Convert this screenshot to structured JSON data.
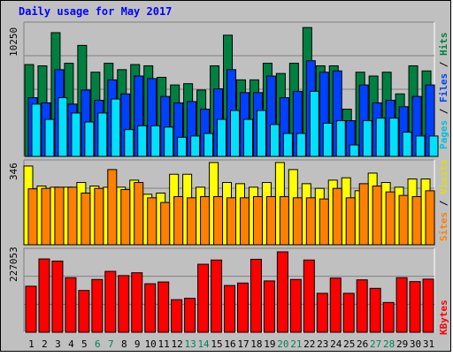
{
  "chart_data": [
    {
      "type": "bar",
      "title": "Daily usage for May 2017",
      "max_label": "10250",
      "categories": [
        "1",
        "2",
        "3",
        "4",
        "5",
        "6",
        "7",
        "8",
        "9",
        "10",
        "11",
        "12",
        "13",
        "14",
        "15",
        "16",
        "17",
        "18",
        "19",
        "20",
        "21",
        "22",
        "23",
        "24",
        "25",
        "26",
        "27",
        "28",
        "29",
        "30",
        "31"
      ],
      "weekend_days": [
        "6",
        "7",
        "13",
        "14",
        "20",
        "21",
        "27",
        "28"
      ],
      "legend": [
        "Pages",
        "/",
        "Files",
        "/",
        "Hits"
      ],
      "ylim": [
        0,
        10250
      ],
      "series": [
        {
          "name": "Hits",
          "color": "#008040",
          "values": [
            7200,
            7100,
            9700,
            7300,
            8700,
            6600,
            7300,
            6800,
            7200,
            7100,
            6200,
            5600,
            5700,
            5200,
            7100,
            9500,
            6000,
            6000,
            7300,
            6500,
            7300,
            10100,
            7100,
            7100,
            3700,
            6600,
            6300,
            6600,
            4900,
            7100,
            6700
          ]
        },
        {
          "name": "Files",
          "color": "#0040ff",
          "values": [
            4600,
            4200,
            6800,
            4100,
            5200,
            4400,
            6000,
            4900,
            6300,
            6100,
            4700,
            4200,
            4300,
            3700,
            5300,
            6800,
            5000,
            5000,
            6300,
            4600,
            5100,
            7500,
            6600,
            6700,
            2800,
            5600,
            4200,
            4400,
            3900,
            4700,
            5600
          ]
        },
        {
          "name": "Pages",
          "color": "#00e0ff",
          "values": [
            4100,
            2900,
            4600,
            3400,
            2700,
            3400,
            4500,
            2100,
            2400,
            2400,
            2300,
            1500,
            1600,
            1800,
            2900,
            3600,
            2900,
            3600,
            2500,
            1800,
            1800,
            5100,
            2600,
            2800,
            900,
            2800,
            3000,
            3000,
            1900,
            1600,
            1600
          ]
        }
      ]
    },
    {
      "type": "bar",
      "max_label": "346",
      "categories": [
        "1",
        "2",
        "3",
        "4",
        "5",
        "6",
        "7",
        "8",
        "9",
        "10",
        "11",
        "12",
        "13",
        "14",
        "15",
        "16",
        "17",
        "18",
        "19",
        "20",
        "21",
        "22",
        "23",
        "24",
        "25",
        "26",
        "27",
        "28",
        "29",
        "30",
        "31"
      ],
      "legend": [
        "Sites",
        "/",
        "Visits"
      ],
      "ylim": [
        0,
        346
      ],
      "series": [
        {
          "name": "Visits",
          "color": "#ffff00",
          "values": [
            335,
            250,
            245,
            245,
            265,
            250,
            245,
            245,
            275,
            215,
            220,
            300,
            300,
            245,
            350,
            265,
            260,
            245,
            265,
            350,
            320,
            260,
            240,
            275,
            285,
            230,
            305,
            265,
            245,
            280,
            280
          ]
        },
        {
          "name": "Sites",
          "color": "#ff8000",
          "values": [
            238,
            240,
            245,
            245,
            220,
            240,
            320,
            235,
            265,
            200,
            180,
            205,
            200,
            205,
            205,
            200,
            200,
            205,
            205,
            205,
            200,
            200,
            195,
            240,
            200,
            260,
            250,
            225,
            210,
            205,
            230
          ]
        }
      ]
    },
    {
      "type": "bar",
      "max_label": "227053",
      "categories": [
        "1",
        "2",
        "3",
        "4",
        "5",
        "6",
        "7",
        "8",
        "9",
        "10",
        "11",
        "12",
        "13",
        "14",
        "15",
        "16",
        "17",
        "18",
        "19",
        "20",
        "21",
        "22",
        "23",
        "24",
        "25",
        "26",
        "27",
        "28",
        "29",
        "30",
        "31"
      ],
      "legend": [
        "KBytes"
      ],
      "ylim": [
        0,
        227053
      ],
      "series": [
        {
          "name": "KBytes",
          "color": "#ff0000",
          "values": [
            130000,
            207000,
            201000,
            154000,
            118000,
            149000,
            172000,
            160000,
            168000,
            137000,
            142000,
            92000,
            96000,
            192000,
            204000,
            132000,
            139000,
            206000,
            145000,
            227053,
            149000,
            204000,
            110000,
            153000,
            110000,
            148000,
            124000,
            84000,
            154000,
            143000,
            150000
          ]
        }
      ]
    }
  ]
}
